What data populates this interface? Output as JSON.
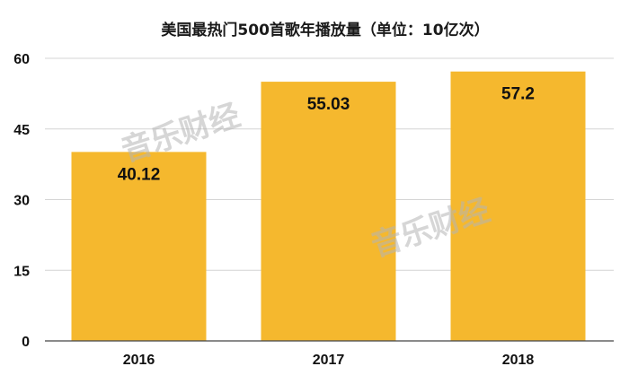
{
  "chart_data": {
    "type": "bar",
    "title": "美国最热门500首歌年播放量（单位：10亿次）",
    "categories": [
      "2016",
      "2017",
      "2018"
    ],
    "values": [
      40.12,
      55.03,
      57.2
    ],
    "value_labels": [
      "40.12",
      "55.03",
      "57.2"
    ],
    "ylim": [
      0,
      60
    ],
    "yticks": [
      0,
      15,
      30,
      45,
      60
    ],
    "ytick_labels": [
      "0",
      "15",
      "30",
      "45",
      "60"
    ],
    "grid": true,
    "legend": "none",
    "bar_color": "#F5B82E"
  },
  "watermarks": [
    "音乐财经",
    "音乐财经"
  ]
}
